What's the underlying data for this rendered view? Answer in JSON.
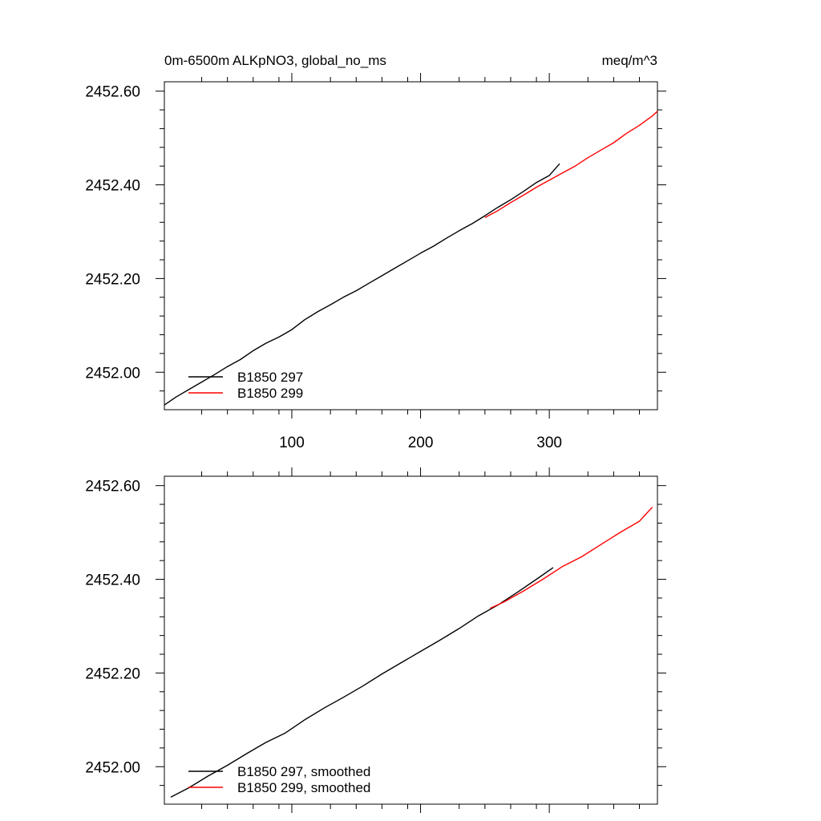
{
  "figure": {
    "title_left": "0m-6500m ALKpNO3, global_no_ms",
    "title_right": "meq/m^3"
  },
  "chart_data": [
    {
      "type": "line",
      "title": "0m-6500m ALKpNO3, global_no_ms",
      "units": "meq/m^3",
      "xlim": [
        1,
        384
      ],
      "ylim": [
        2451.92,
        2452.62
      ],
      "xticks": [
        100,
        200,
        300
      ],
      "xtick_labels": [
        "100",
        "200",
        "300"
      ],
      "yticks": [
        2452.0,
        2452.2,
        2452.4,
        2452.6
      ],
      "ytick_labels": [
        "2452.00",
        "2452.20",
        "2452.40",
        "2452.60"
      ],
      "legend": "bottom-left",
      "series": [
        {
          "name": "B1850 297",
          "color": "#000000",
          "x": [
            1,
            10,
            20,
            30,
            40,
            50,
            60,
            70,
            80,
            90,
            100,
            110,
            120,
            130,
            140,
            150,
            160,
            170,
            180,
            190,
            200,
            210,
            220,
            230,
            240,
            250,
            260,
            270,
            280,
            290,
            300,
            308
          ],
          "y": [
            2451.93,
            2451.947,
            2451.963,
            2451.979,
            2451.995,
            2452.012,
            2452.027,
            2452.046,
            2452.062,
            2452.075,
            2452.091,
            2452.112,
            2452.129,
            2452.144,
            2452.16,
            2452.174,
            2452.19,
            2452.206,
            2452.222,
            2452.238,
            2452.254,
            2452.269,
            2452.286,
            2452.302,
            2452.317,
            2452.334,
            2452.352,
            2452.368,
            2452.386,
            2452.405,
            2452.42,
            2452.445
          ]
        },
        {
          "name": "B1850 299",
          "color": "#ff0000",
          "x": [
            250,
            260,
            270,
            280,
            290,
            300,
            310,
            320,
            330,
            340,
            350,
            360,
            370,
            380,
            384
          ],
          "y": [
            2452.33,
            2452.345,
            2452.362,
            2452.378,
            2452.395,
            2452.41,
            2452.425,
            2452.44,
            2452.458,
            2452.474,
            2452.49,
            2452.51,
            2452.527,
            2452.547,
            2452.557
          ]
        }
      ]
    },
    {
      "type": "line",
      "xlim": [
        1,
        384
      ],
      "ylim": [
        2451.92,
        2452.62
      ],
      "xticks": [
        100,
        200,
        300
      ],
      "yticks": [
        2452.0,
        2452.2,
        2452.4,
        2452.6
      ],
      "ytick_labels": [
        "2452.00",
        "2452.20",
        "2452.40",
        "2452.60"
      ],
      "legend": "bottom-left",
      "series": [
        {
          "name": "B1850 297, smoothed",
          "color": "#000000",
          "x": [
            6,
            20,
            35,
            50,
            65,
            80,
            95,
            110,
            125,
            140,
            155,
            170,
            185,
            200,
            215,
            230,
            245,
            260,
            275,
            290,
            303
          ],
          "y": [
            2451.935,
            2451.955,
            2451.98,
            2452.003,
            2452.028,
            2452.052,
            2452.072,
            2452.1,
            2452.125,
            2452.148,
            2452.172,
            2452.198,
            2452.222,
            2452.246,
            2452.27,
            2452.295,
            2452.322,
            2452.345,
            2452.372,
            2452.4,
            2452.425
          ]
        },
        {
          "name": "B1850 299, smoothed",
          "color": "#ff0000",
          "x": [
            254,
            265,
            280,
            295,
            310,
            325,
            340,
            355,
            370,
            380
          ],
          "y": [
            2452.338,
            2452.352,
            2452.375,
            2452.4,
            2452.427,
            2452.448,
            2452.474,
            2452.5,
            2452.524,
            2452.554
          ]
        }
      ]
    }
  ]
}
